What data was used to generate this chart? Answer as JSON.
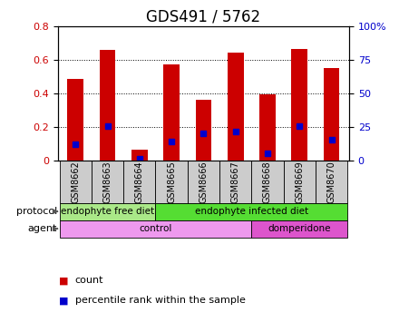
{
  "title": "GDS491 / 5762",
  "samples": [
    "GSM8662",
    "GSM8663",
    "GSM8664",
    "GSM8665",
    "GSM8666",
    "GSM8667",
    "GSM8668",
    "GSM8669",
    "GSM8670"
  ],
  "count_values": [
    0.49,
    0.66,
    0.065,
    0.575,
    0.365,
    0.645,
    0.395,
    0.665,
    0.55
  ],
  "percentile_values": [
    0.1,
    0.205,
    0.01,
    0.115,
    0.165,
    0.175,
    0.045,
    0.205,
    0.125
  ],
  "ylim_left": [
    0,
    0.8
  ],
  "ylim_right": [
    0,
    100
  ],
  "yticks_left": [
    0,
    0.2,
    0.4,
    0.6,
    0.8
  ],
  "yticks_right": [
    0,
    25,
    50,
    75,
    100
  ],
  "color_red": "#cc0000",
  "color_blue": "#0000cc",
  "bar_width": 0.5,
  "protocol_groups": [
    {
      "label": "endophyte free diet",
      "start": 0,
      "end": 3,
      "color": "#aae888"
    },
    {
      "label": "endophyte infected diet",
      "start": 3,
      "end": 9,
      "color": "#55dd33"
    }
  ],
  "agent_groups": [
    {
      "label": "control",
      "start": 0,
      "end": 6,
      "color": "#ee99ee"
    },
    {
      "label": "domperidone",
      "start": 6,
      "end": 9,
      "color": "#dd55cc"
    }
  ],
  "protocol_label": "protocol",
  "agent_label": "agent",
  "legend_count": "count",
  "legend_percentile": "percentile rank within the sample",
  "bg_color": "#ffffff",
  "sample_bg": "#cccccc",
  "left_label_color": "#444444"
}
